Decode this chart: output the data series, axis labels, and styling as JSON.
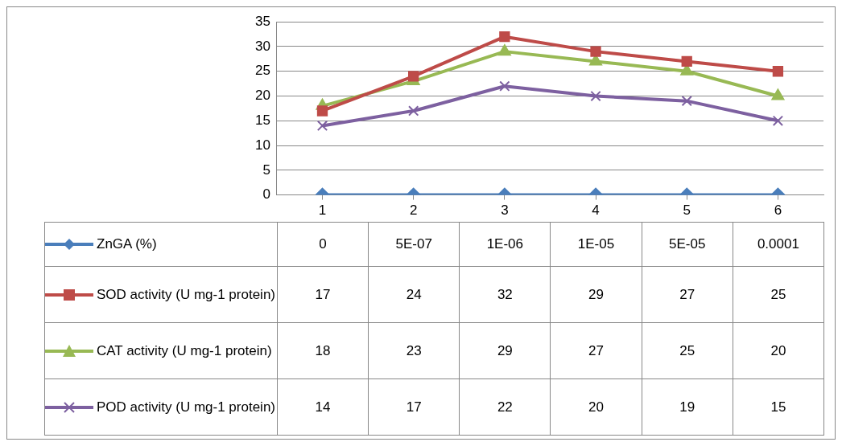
{
  "chart_data": {
    "type": "line",
    "categories": [
      "1",
      "2",
      "3",
      "4",
      "5",
      "6"
    ],
    "ylim": [
      0,
      35
    ],
    "yticks": [
      0,
      5,
      10,
      15,
      20,
      25,
      30,
      35
    ],
    "grid": "y",
    "legend": "bottom",
    "series": [
      {
        "name": "ZnGA (%)",
        "color": "#4a7ebb",
        "marker": "diamond",
        "values": [
          0,
          5e-07,
          1e-06,
          1e-05,
          5e-05,
          0.0001
        ],
        "value_labels": [
          "0",
          "5E-07",
          "1E-06",
          "1E-05",
          "5E-05",
          "0.0001"
        ]
      },
      {
        "name": "SOD activity (U mg-1 protein)",
        "color": "#be4b48",
        "marker": "square",
        "values": [
          17,
          24,
          32,
          29,
          27,
          25
        ],
        "value_labels": [
          "17",
          "24",
          "32",
          "29",
          "27",
          "25"
        ]
      },
      {
        "name": "CAT activity (U mg-1 protein)",
        "color": "#98b954",
        "marker": "triangle",
        "values": [
          18,
          23,
          29,
          27,
          25,
          20
        ],
        "value_labels": [
          "18",
          "23",
          "29",
          "27",
          "25",
          "20"
        ]
      },
      {
        "name": "POD activity (U mg-1 protein)",
        "color": "#7d60a0",
        "marker": "cross",
        "values": [
          14,
          17,
          22,
          20,
          19,
          15
        ],
        "value_labels": [
          "14",
          "17",
          "22",
          "20",
          "19",
          "15"
        ]
      }
    ]
  }
}
